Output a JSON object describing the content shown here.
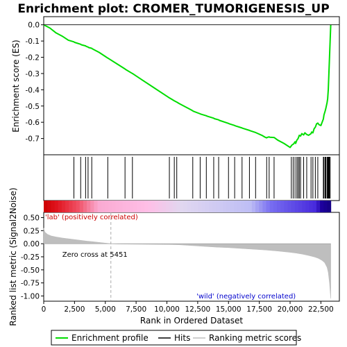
{
  "chart_data": {
    "type": "line",
    "title": "Enrichment plot: CROMER_TUMORIGENESIS_UP",
    "xlabel": "Rank in Ordered Dataset",
    "ylabel_es": "Enrichment score (ES)",
    "ylabel_metric": "Ranked list metric (Signal2Noise)",
    "x_range": [
      0,
      24000
    ],
    "x_ticks": [
      0,
      2500,
      5000,
      7500,
      10000,
      12500,
      15000,
      17500,
      20000,
      22500
    ],
    "x_tick_labels": [
      "0",
      "2,500",
      "5,000",
      "7,500",
      "10,000",
      "12,500",
      "15,000",
      "17,500",
      "20,000",
      "22,500"
    ],
    "es_ylim": [
      -0.8,
      0.05
    ],
    "es_ticks": [
      0.0,
      -0.1,
      -0.2,
      -0.3,
      -0.4,
      -0.5,
      -0.6,
      -0.7
    ],
    "es_tick_labels": [
      "0.0",
      "-0.1",
      "-0.2",
      "-0.3",
      "-0.4",
      "-0.5",
      "-0.6",
      "-0.7"
    ],
    "metric_ylim": [
      -1.1,
      0.6
    ],
    "metric_ticks": [
      0.5,
      0.25,
      0.0,
      -0.25,
      -0.5,
      -0.75,
      -1.0
    ],
    "metric_tick_labels": [
      "0.50",
      "0.25",
      "0.00",
      "-0.25",
      "-0.50",
      "-0.75",
      "-1.00"
    ],
    "dataset_size": 23300,
    "zero_cross": 5451,
    "zero_cross_label": "Zero cross at 5451",
    "pos_label": "'lab' (positively correlated)",
    "neg_label": "'wild' (negatively correlated)",
    "series": [
      {
        "name": "Enrichment profile",
        "color": "#00dd00",
        "x": [
          0,
          500,
          1000,
          1500,
          2000,
          2450,
          2500,
          3000,
          3050,
          3400,
          3450,
          3600,
          3650,
          3900,
          3950,
          4500,
          5000,
          5200,
          5250,
          6000,
          6600,
          6650,
          7200,
          7250,
          8000,
          9000,
          10000,
          10200,
          10250,
          10600,
          10650,
          10800,
          10850,
          11000,
          12000,
          12100,
          12150,
          12700,
          12750,
          13200,
          13250,
          13800,
          13850,
          14200,
          14250,
          15000,
          15050,
          15500,
          15550,
          16100,
          16150,
          16700,
          16750,
          17200,
          17250,
          17700,
          18000,
          18100,
          18150,
          18300,
          18350,
          18700,
          18750,
          19000,
          19500,
          20000,
          20100,
          20150,
          20250,
          20300,
          20400,
          20450,
          20550,
          20650,
          20700,
          20750,
          20850,
          20950,
          21100,
          21200,
          21350,
          21500,
          21700,
          21750,
          21850,
          21950,
          22050,
          22150,
          22250,
          22350,
          22500,
          22700,
          22750,
          22850,
          22900,
          23000,
          23050,
          23100,
          23150,
          23200,
          23250,
          23300
        ],
        "y": [
          0.0,
          -0.02,
          -0.05,
          -0.07,
          -0.095,
          -0.105,
          -0.108,
          -0.12,
          -0.123,
          -0.13,
          -0.133,
          -0.137,
          -0.14,
          -0.145,
          -0.148,
          -0.17,
          -0.195,
          -0.205,
          -0.207,
          -0.243,
          -0.272,
          -0.275,
          -0.3,
          -0.302,
          -0.34,
          -0.39,
          -0.44,
          -0.45,
          -0.452,
          -0.468,
          -0.47,
          -0.476,
          -0.478,
          -0.485,
          -0.525,
          -0.53,
          -0.532,
          -0.548,
          -0.55,
          -0.56,
          -0.562,
          -0.575,
          -0.578,
          -0.585,
          -0.588,
          -0.607,
          -0.609,
          -0.62,
          -0.622,
          -0.635,
          -0.637,
          -0.65,
          -0.652,
          -0.663,
          -0.665,
          -0.68,
          -0.693,
          -0.696,
          -0.693,
          -0.69,
          -0.692,
          -0.694,
          -0.696,
          -0.71,
          -0.73,
          -0.755,
          -0.745,
          -0.74,
          -0.735,
          -0.732,
          -0.72,
          -0.73,
          -0.71,
          -0.7,
          -0.69,
          -0.68,
          -0.685,
          -0.67,
          -0.678,
          -0.665,
          -0.675,
          -0.68,
          -0.67,
          -0.66,
          -0.665,
          -0.64,
          -0.63,
          -0.61,
          -0.605,
          -0.615,
          -0.62,
          -0.58,
          -0.555,
          -0.53,
          -0.515,
          -0.48,
          -0.455,
          -0.4,
          -0.3,
          -0.2,
          -0.1,
          0.0
        ]
      },
      {
        "name": "Hits",
        "color": "#000000",
        "positions": [
          2450,
          3000,
          3400,
          3600,
          3900,
          5200,
          6600,
          7200,
          10200,
          10600,
          10800,
          12100,
          12700,
          13200,
          13800,
          14200,
          15000,
          15500,
          16100,
          16700,
          17200,
          18100,
          18300,
          18700,
          20100,
          20250,
          20400,
          20550,
          20650,
          20750,
          20850,
          21100,
          21350,
          21700,
          21850,
          22050,
          22250,
          22700,
          22750,
          22850,
          22900,
          23000,
          23050,
          23100,
          23150,
          23200,
          23250
        ]
      },
      {
        "name": "Ranking metric scores",
        "color": "#bebebe",
        "x": [
          0,
          100,
          300,
          600,
          1000,
          1500,
          2000,
          2500,
          3000,
          3500,
          4000,
          4500,
          5000,
          5451,
          6000,
          8000,
          10000,
          11000,
          12000,
          13000,
          14000,
          15000,
          16000,
          17000,
          18000,
          19000,
          20000,
          20500,
          21000,
          21500,
          22000,
          22300,
          22600,
          22800,
          23000,
          23100,
          23200,
          23300
        ],
        "y": [
          0.3,
          0.22,
          0.18,
          0.15,
          0.13,
          0.11,
          0.095,
          0.08,
          0.065,
          0.05,
          0.038,
          0.025,
          0.012,
          0.0,
          -0.005,
          -0.01,
          -0.015,
          -0.02,
          -0.035,
          -0.05,
          -0.065,
          -0.075,
          -0.09,
          -0.105,
          -0.12,
          -0.14,
          -0.165,
          -0.18,
          -0.2,
          -0.225,
          -0.255,
          -0.28,
          -0.32,
          -0.36,
          -0.45,
          -0.55,
          -0.75,
          -1.05
        ]
      }
    ],
    "legend": {
      "placement": "bottom",
      "entries": [
        {
          "label": "Enrichment profile",
          "color": "#00dd00"
        },
        {
          "label": "Hits",
          "color": "#000000"
        },
        {
          "label": "Ranking metric scores",
          "color": "#bebebe"
        }
      ]
    },
    "grid": false
  }
}
